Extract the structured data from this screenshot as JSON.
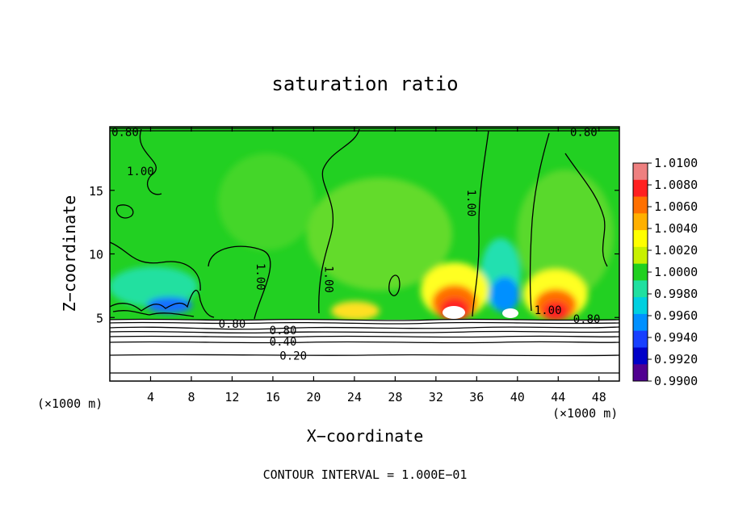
{
  "chart_data": {
    "type": "heatmap",
    "title": "saturation ratio",
    "xlabel": "X−coordinate",
    "ylabel": "Z−coordinate",
    "x_unit_left": "(×1000 m)",
    "x_unit_right": "(×1000 m)",
    "x_ticks": [
      4,
      8,
      12,
      16,
      20,
      24,
      28,
      32,
      36,
      40,
      44,
      48
    ],
    "y_ticks": [
      5,
      10,
      15
    ],
    "xlim": [
      0,
      50
    ],
    "ylim": [
      0,
      20
    ],
    "footer": "CONTOUR INTERVAL = 1.000E−01",
    "colorbar": {
      "labels": [
        "1.0100",
        "1.0080",
        "1.0060",
        "1.0040",
        "1.0020",
        "1.0000",
        "0.9980",
        "0.9960",
        "0.9940",
        "0.9920",
        "0.9900"
      ],
      "colors": [
        "#ee8080",
        "#ff2020",
        "#ff7000",
        "#ffb000",
        "#ffff00",
        "#c8f000",
        "#20d020",
        "#20e0a0",
        "#00d0e0",
        "#0090ff",
        "#1840ff",
        "#0000c8",
        "#500090"
      ]
    },
    "contour_labels": [
      {
        "text": "0.80",
        "x": 1.5,
        "z": 19.6
      },
      {
        "text": "0.80",
        "x": 46.5,
        "z": 19.6
      },
      {
        "text": "1.00",
        "x": 3.0,
        "z": 16.5
      },
      {
        "text": "1.00",
        "x": 14.8,
        "z": 8.2
      },
      {
        "text": "1.00",
        "x": 21.5,
        "z": 8.0
      },
      {
        "text": "1.00",
        "x": 35.5,
        "z": 14.0
      },
      {
        "text": "1.00",
        "x": 43.0,
        "z": 5.6
      },
      {
        "text": "0.80",
        "x": 12.0,
        "z": 4.5
      },
      {
        "text": "0.80",
        "x": 17.0,
        "z": 4.0
      },
      {
        "text": "0.80",
        "x": 46.8,
        "z": 4.9
      },
      {
        "text": "0.40",
        "x": 17.0,
        "z": 3.1
      },
      {
        "text": "0.20",
        "x": 18.0,
        "z": 2.0
      }
    ]
  }
}
